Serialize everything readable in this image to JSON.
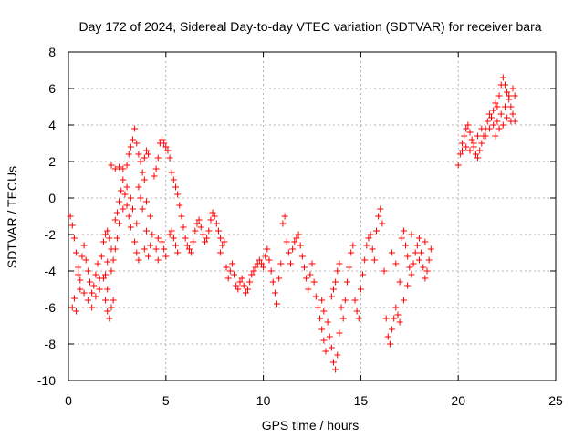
{
  "chart_data": {
    "type": "scatter",
    "title": "Day 172 of 2024, Sidereal Day-to-day VTEC variation (SDTVAR) for receiver bara",
    "xlabel": "GPS time / hours",
    "ylabel": "SDTVAR / TECUs",
    "xlim": [
      0,
      25
    ],
    "ylim": [
      -10,
      8
    ],
    "xticks": [
      "0",
      "5",
      "10",
      "15",
      "20",
      "25"
    ],
    "yticks": [
      "-10",
      "-8",
      "-6",
      "-4",
      "-2",
      "0",
      "2",
      "4",
      "6",
      "8"
    ],
    "grid": true,
    "marker": "plus",
    "series": [
      {
        "color": "#ff0000",
        "points": [
          [
            0.1,
            -1.0
          ],
          [
            0.2,
            -1.5
          ],
          [
            0.3,
            -2.2
          ],
          [
            0.4,
            -3.0
          ],
          [
            0.5,
            -3.8
          ],
          [
            0.3,
            -5.5
          ],
          [
            0.2,
            -6.0
          ],
          [
            0.4,
            -6.2
          ],
          [
            0.6,
            -5.0
          ],
          [
            0.5,
            -4.2
          ],
          [
            0.7,
            -3.2
          ],
          [
            0.8,
            -2.6
          ],
          [
            0.9,
            -3.4
          ],
          [
            1.0,
            -4.0
          ],
          [
            1.1,
            -4.6
          ],
          [
            1.2,
            -5.2
          ],
          [
            1.3,
            -4.8
          ],
          [
            1.4,
            -4.2
          ],
          [
            1.5,
            -3.6
          ],
          [
            1.6,
            -4.4
          ],
          [
            0.6,
            -4.5
          ],
          [
            0.8,
            -5.2
          ],
          [
            1.0,
            -5.6
          ],
          [
            1.2,
            -6.0
          ],
          [
            1.4,
            -5.4
          ],
          [
            1.6,
            -5.0
          ],
          [
            1.8,
            -4.4
          ],
          [
            1.7,
            -3.2
          ],
          [
            1.8,
            -2.4
          ],
          [
            1.9,
            -2.0
          ],
          [
            2.0,
            -1.8
          ],
          [
            2.1,
            -2.2
          ],
          [
            2.2,
            -2.8
          ],
          [
            2.0,
            -3.5
          ],
          [
            1.9,
            -4.2
          ],
          [
            2.0,
            -5.0
          ],
          [
            1.9,
            -5.6
          ],
          [
            2.0,
            -6.2
          ],
          [
            2.1,
            -6.6
          ],
          [
            2.2,
            -6.0
          ],
          [
            2.3,
            -5.6
          ],
          [
            2.4,
            -1.2
          ],
          [
            2.5,
            -0.8
          ],
          [
            2.6,
            -0.2
          ],
          [
            2.7,
            0.4
          ],
          [
            2.8,
            1.0
          ],
          [
            2.9,
            0.2
          ],
          [
            3.0,
            -0.4
          ],
          [
            3.1,
            -1.0
          ],
          [
            3.2,
            -1.6
          ],
          [
            2.2,
            1.8
          ],
          [
            2.4,
            1.6
          ],
          [
            2.6,
            1.7
          ],
          [
            2.8,
            1.6
          ],
          [
            3.0,
            1.8
          ],
          [
            3.1,
            2.4
          ],
          [
            3.2,
            2.8
          ],
          [
            3.3,
            3.2
          ],
          [
            3.4,
            3.8
          ],
          [
            3.5,
            3.0
          ],
          [
            3.6,
            2.4
          ],
          [
            3.7,
            2.0
          ],
          [
            3.8,
            1.4
          ],
          [
            3.9,
            1.0
          ],
          [
            3.6,
            0.6
          ],
          [
            3.7,
            0.0
          ],
          [
            3.8,
            -0.6
          ],
          [
            3.5,
            -1.4
          ],
          [
            3.4,
            -2.4
          ],
          [
            3.5,
            -3.0
          ],
          [
            3.6,
            -3.4
          ],
          [
            3.3,
            -0.6
          ],
          [
            3.2,
            0.0
          ],
          [
            3.0,
            0.6
          ],
          [
            2.8,
            -0.6
          ],
          [
            2.6,
            -1.4
          ],
          [
            2.5,
            -2.2
          ],
          [
            2.4,
            -2.8
          ],
          [
            2.3,
            -3.4
          ],
          [
            2.2,
            -4.0
          ],
          [
            3.9,
            2.2
          ],
          [
            4.0,
            2.6
          ],
          [
            4.1,
            2.4
          ],
          [
            4.0,
            -0.2
          ],
          [
            4.2,
            -1.0
          ],
          [
            4.3,
            -2.0
          ],
          [
            4.2,
            -2.6
          ],
          [
            4.0,
            -1.8
          ],
          [
            3.9,
            -2.8
          ],
          [
            4.1,
            -3.2
          ],
          [
            4.4,
            1.2
          ],
          [
            4.5,
            1.6
          ],
          [
            4.6,
            2.2
          ],
          [
            4.7,
            3.0
          ],
          [
            4.8,
            3.2
          ],
          [
            4.9,
            3.0
          ],
          [
            5.0,
            2.8
          ],
          [
            5.1,
            2.6
          ],
          [
            5.2,
            2.2
          ],
          [
            4.6,
            -3.4
          ],
          [
            4.5,
            -2.8
          ],
          [
            4.6,
            -2.2
          ],
          [
            4.8,
            -2.4
          ],
          [
            4.9,
            -2.8
          ],
          [
            5.0,
            -3.2
          ],
          [
            5.2,
            -2.0
          ],
          [
            5.3,
            -1.8
          ],
          [
            5.4,
            -2.2
          ],
          [
            5.5,
            -2.6
          ],
          [
            5.6,
            -3.0
          ],
          [
            5.3,
            1.4
          ],
          [
            5.4,
            1.0
          ],
          [
            5.5,
            0.6
          ],
          [
            5.6,
            0.2
          ],
          [
            5.7,
            -0.4
          ],
          [
            5.8,
            -1.0
          ],
          [
            5.9,
            -1.6
          ],
          [
            6.0,
            -2.2
          ],
          [
            6.1,
            -2.6
          ],
          [
            6.2,
            -2.8
          ],
          [
            6.3,
            -3.0
          ],
          [
            6.4,
            -2.4
          ],
          [
            6.5,
            -1.8
          ],
          [
            6.6,
            -1.4
          ],
          [
            6.7,
            -1.2
          ],
          [
            6.8,
            -1.6
          ],
          [
            6.9,
            -2.0
          ],
          [
            7.0,
            -2.4
          ],
          [
            7.1,
            -2.2
          ],
          [
            7.2,
            -1.8
          ],
          [
            7.3,
            -1.2
          ],
          [
            7.4,
            -0.8
          ],
          [
            7.5,
            -1.0
          ],
          [
            7.6,
            -1.4
          ],
          [
            7.7,
            -1.8
          ],
          [
            7.8,
            -2.2
          ],
          [
            7.9,
            -2.6
          ],
          [
            8.0,
            -2.4
          ],
          [
            7.8,
            -3.0
          ],
          [
            8.1,
            -3.8
          ],
          [
            8.2,
            -4.4
          ],
          [
            8.3,
            -4.0
          ],
          [
            8.4,
            -3.6
          ],
          [
            8.5,
            -4.2
          ],
          [
            8.6,
            -4.8
          ],
          [
            8.7,
            -5.0
          ],
          [
            8.8,
            -4.6
          ],
          [
            8.9,
            -4.4
          ],
          [
            9.0,
            -4.8
          ],
          [
            9.1,
            -5.2
          ],
          [
            9.2,
            -5.0
          ],
          [
            9.3,
            -4.6
          ],
          [
            9.4,
            -4.2
          ],
          [
            9.5,
            -4.0
          ],
          [
            9.6,
            -3.8
          ],
          [
            9.7,
            -3.6
          ],
          [
            9.8,
            -3.4
          ],
          [
            9.9,
            -3.6
          ],
          [
            10.0,
            -3.8
          ],
          [
            10.1,
            -3.2
          ],
          [
            10.2,
            -2.8
          ],
          [
            10.3,
            -3.4
          ],
          [
            10.4,
            -4.0
          ],
          [
            10.5,
            -4.6
          ],
          [
            10.6,
            -5.2
          ],
          [
            10.7,
            -5.8
          ],
          [
            10.8,
            -4.4
          ],
          [
            10.9,
            -3.6
          ],
          [
            11.0,
            -1.4
          ],
          [
            11.1,
            -1.0
          ],
          [
            11.2,
            -2.4
          ],
          [
            11.3,
            -3.0
          ],
          [
            11.4,
            -3.6
          ],
          [
            11.5,
            -2.8
          ],
          [
            11.6,
            -2.4
          ],
          [
            11.7,
            -2.2
          ],
          [
            11.8,
            -2.0
          ],
          [
            11.9,
            -2.6
          ],
          [
            12.0,
            -3.2
          ],
          [
            12.1,
            -3.8
          ],
          [
            12.2,
            -4.4
          ],
          [
            12.3,
            -5.0
          ],
          [
            12.4,
            -4.2
          ],
          [
            12.5,
            -3.6
          ],
          [
            12.6,
            -4.6
          ],
          [
            12.7,
            -5.4
          ],
          [
            12.8,
            -6.0
          ],
          [
            12.9,
            -6.6
          ],
          [
            13.0,
            -7.2
          ],
          [
            13.1,
            -7.8
          ],
          [
            13.2,
            -8.4
          ],
          [
            13.0,
            -5.6
          ],
          [
            13.1,
            -6.2
          ],
          [
            13.3,
            -6.8
          ],
          [
            13.4,
            -7.6
          ],
          [
            13.5,
            -8.2
          ],
          [
            13.6,
            -9.0
          ],
          [
            13.7,
            -9.4
          ],
          [
            13.8,
            -8.6
          ],
          [
            13.9,
            -7.4
          ],
          [
            13.5,
            -5.4
          ],
          [
            13.6,
            -5.0
          ],
          [
            13.7,
            -4.6
          ],
          [
            13.8,
            -4.0
          ],
          [
            13.9,
            -3.6
          ],
          [
            14.0,
            -6.0
          ],
          [
            14.1,
            -6.6
          ],
          [
            14.2,
            -5.6
          ],
          [
            14.3,
            -4.6
          ],
          [
            14.4,
            -3.8
          ],
          [
            14.5,
            -3.0
          ],
          [
            14.6,
            -2.6
          ],
          [
            14.7,
            -5.6
          ],
          [
            14.8,
            -6.2
          ],
          [
            14.9,
            -6.6
          ],
          [
            15.0,
            -5.0
          ],
          [
            15.1,
            -4.2
          ],
          [
            15.2,
            -3.4
          ],
          [
            15.3,
            -2.6
          ],
          [
            15.4,
            -2.2
          ],
          [
            15.5,
            -2.0
          ],
          [
            15.6,
            -2.8
          ],
          [
            15.7,
            -3.4
          ],
          [
            15.8,
            -1.8
          ],
          [
            15.9,
            -1.0
          ],
          [
            16.0,
            -0.6
          ],
          [
            16.1,
            -1.4
          ],
          [
            16.2,
            -4.0
          ],
          [
            16.3,
            -6.6
          ],
          [
            16.4,
            -7.6
          ],
          [
            16.5,
            -8.0
          ],
          [
            16.6,
            -7.2
          ],
          [
            16.7,
            -6.6
          ],
          [
            16.8,
            -6.0
          ],
          [
            16.9,
            -6.4
          ],
          [
            17.0,
            -6.8
          ],
          [
            17.1,
            -2.2
          ],
          [
            17.2,
            -1.8
          ],
          [
            17.3,
            -2.6
          ],
          [
            17.4,
            -3.2
          ],
          [
            17.5,
            -3.8
          ],
          [
            17.6,
            -4.2
          ],
          [
            17.7,
            -3.6
          ],
          [
            17.8,
            -3.0
          ],
          [
            17.9,
            -2.6
          ],
          [
            18.0,
            -2.2
          ],
          [
            18.1,
            -3.0
          ],
          [
            18.2,
            -3.8
          ],
          [
            18.3,
            -4.4
          ],
          [
            18.4,
            -4.0
          ],
          [
            18.5,
            -3.4
          ],
          [
            18.6,
            -2.8
          ],
          [
            18.3,
            -2.4
          ],
          [
            18.0,
            -3.4
          ],
          [
            17.6,
            -2.0
          ],
          [
            17.4,
            -4.8
          ],
          [
            17.2,
            -5.6
          ],
          [
            17.0,
            -4.6
          ],
          [
            16.8,
            -3.6
          ],
          [
            16.6,
            -3.0
          ],
          [
            20.0,
            1.8
          ],
          [
            20.1,
            2.4
          ],
          [
            20.2,
            3.0
          ],
          [
            20.3,
            3.4
          ],
          [
            20.4,
            3.8
          ],
          [
            20.5,
            4.0
          ],
          [
            20.6,
            3.6
          ],
          [
            20.7,
            3.2
          ],
          [
            20.8,
            2.8
          ],
          [
            20.9,
            2.4
          ],
          [
            21.0,
            2.2
          ],
          [
            21.1,
            2.6
          ],
          [
            21.2,
            3.0
          ],
          [
            21.3,
            3.4
          ],
          [
            21.4,
            3.8
          ],
          [
            21.5,
            4.2
          ],
          [
            21.6,
            4.6
          ],
          [
            21.7,
            4.4
          ],
          [
            21.8,
            4.8
          ],
          [
            21.9,
            5.2
          ],
          [
            22.0,
            5.0
          ],
          [
            22.1,
            5.6
          ],
          [
            22.2,
            6.2
          ],
          [
            22.3,
            6.6
          ],
          [
            22.4,
            6.2
          ],
          [
            22.5,
            5.8
          ],
          [
            22.6,
            5.4
          ],
          [
            22.7,
            5.0
          ],
          [
            22.8,
            4.6
          ],
          [
            22.9,
            4.2
          ],
          [
            20.2,
            2.6
          ],
          [
            20.4,
            2.8
          ],
          [
            20.6,
            2.6
          ],
          [
            20.8,
            3.0
          ],
          [
            21.0,
            3.4
          ],
          [
            21.2,
            3.8
          ],
          [
            21.4,
            3.4
          ],
          [
            21.6,
            3.8
          ],
          [
            21.8,
            4.0
          ],
          [
            22.0,
            4.2
          ],
          [
            22.2,
            4.6
          ],
          [
            22.4,
            5.0
          ],
          [
            22.6,
            5.6
          ],
          [
            22.8,
            6.0
          ],
          [
            22.9,
            5.6
          ],
          [
            22.7,
            4.2
          ],
          [
            22.5,
            4.4
          ],
          [
            22.3,
            4.0
          ],
          [
            22.1,
            3.8
          ],
          [
            21.9,
            3.4
          ]
        ]
      }
    ]
  }
}
